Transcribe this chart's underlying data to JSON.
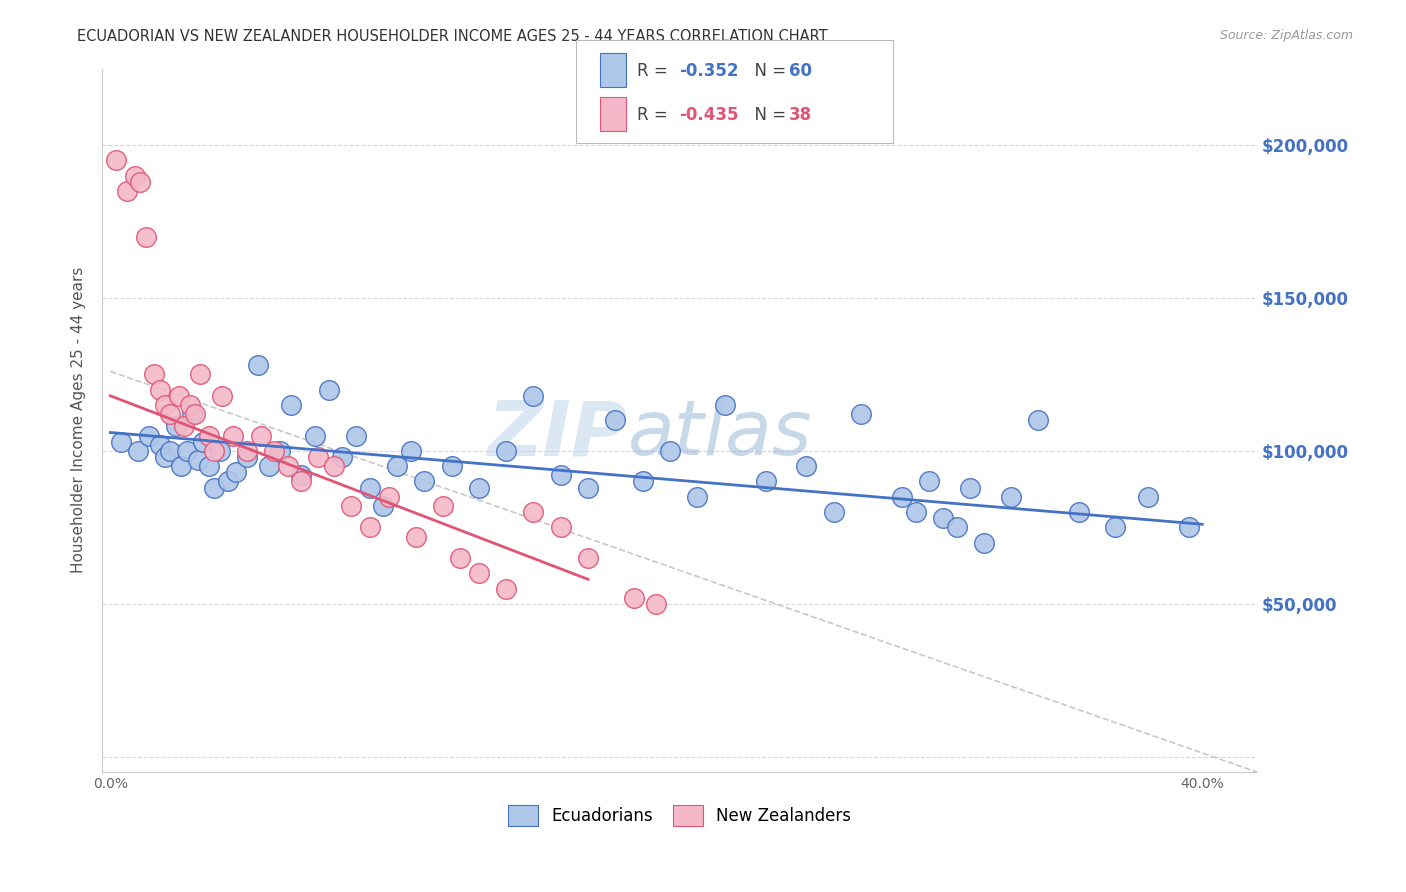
{
  "title": "ECUADORIAN VS NEW ZEALANDER HOUSEHOLDER INCOME AGES 25 - 44 YEARS CORRELATION CHART",
  "source": "Source: ZipAtlas.com",
  "ylabel": "Householder Income Ages 25 - 44 years",
  "xlabel_ticks": [
    "0.0%",
    "",
    "",
    "",
    "",
    "",
    "",
    "",
    "40.0%"
  ],
  "xlabel_vals": [
    0.0,
    0.05,
    0.1,
    0.15,
    0.2,
    0.25,
    0.3,
    0.35,
    0.4
  ],
  "ytick_vals": [
    0,
    50000,
    100000,
    150000,
    200000
  ],
  "ytick_labels": [
    "",
    "$50,000",
    "$100,000",
    "$150,000",
    "$200,000"
  ],
  "ylim": [
    -5000,
    225000
  ],
  "xlim": [
    -0.003,
    0.42
  ],
  "background_color": "#ffffff",
  "grid_color": "#d8d8d8",
  "blue_color": "#aec6e8",
  "pink_color": "#f4b8c8",
  "blue_line_color": "#4472c4",
  "pink_line_color": "#e05575",
  "gray_line_color": "#c8c8c8",
  "ecuadorians_label": "Ecuadorians",
  "nz_label": "New Zealanders",
  "blue_scatter_x": [
    0.004,
    0.01,
    0.014,
    0.018,
    0.02,
    0.022,
    0.024,
    0.026,
    0.028,
    0.03,
    0.032,
    0.034,
    0.036,
    0.038,
    0.04,
    0.043,
    0.046,
    0.05,
    0.054,
    0.058,
    0.062,
    0.066,
    0.07,
    0.075,
    0.08,
    0.085,
    0.09,
    0.095,
    0.1,
    0.105,
    0.11,
    0.115,
    0.125,
    0.135,
    0.145,
    0.155,
    0.165,
    0.175,
    0.185,
    0.195,
    0.205,
    0.215,
    0.225,
    0.24,
    0.255,
    0.265,
    0.275,
    0.29,
    0.305,
    0.315,
    0.295,
    0.3,
    0.31,
    0.32,
    0.33,
    0.34,
    0.355,
    0.368,
    0.38,
    0.395
  ],
  "blue_scatter_y": [
    103000,
    100000,
    105000,
    102000,
    98000,
    100000,
    108000,
    95000,
    100000,
    112000,
    97000,
    103000,
    95000,
    88000,
    100000,
    90000,
    93000,
    98000,
    128000,
    95000,
    100000,
    115000,
    92000,
    105000,
    120000,
    98000,
    105000,
    88000,
    82000,
    95000,
    100000,
    90000,
    95000,
    88000,
    100000,
    118000,
    92000,
    88000,
    110000,
    90000,
    100000,
    85000,
    115000,
    90000,
    95000,
    80000,
    112000,
    85000,
    78000,
    88000,
    80000,
    90000,
    75000,
    70000,
    85000,
    110000,
    80000,
    75000,
    85000,
    75000
  ],
  "pink_scatter_x": [
    0.002,
    0.006,
    0.009,
    0.011,
    0.013,
    0.016,
    0.018,
    0.02,
    0.022,
    0.025,
    0.027,
    0.029,
    0.031,
    0.033,
    0.036,
    0.038,
    0.041,
    0.045,
    0.05,
    0.055,
    0.06,
    0.065,
    0.07,
    0.076,
    0.082,
    0.088,
    0.095,
    0.102,
    0.112,
    0.122,
    0.128,
    0.135,
    0.145,
    0.155,
    0.165,
    0.175,
    0.192,
    0.2
  ],
  "pink_scatter_y": [
    195000,
    185000,
    190000,
    188000,
    170000,
    125000,
    120000,
    115000,
    112000,
    118000,
    108000,
    115000,
    112000,
    125000,
    105000,
    100000,
    118000,
    105000,
    100000,
    105000,
    100000,
    95000,
    90000,
    98000,
    95000,
    82000,
    75000,
    85000,
    72000,
    82000,
    65000,
    60000,
    55000,
    80000,
    75000,
    65000,
    52000,
    50000
  ],
  "blue_line_x": [
    0.0,
    0.4
  ],
  "blue_line_y": [
    106000,
    76000
  ],
  "pink_line_x": [
    0.0,
    0.175
  ],
  "pink_line_y": [
    118000,
    58000
  ],
  "gray_line_x": [
    0.0,
    0.42
  ],
  "gray_line_y": [
    126000,
    -5000
  ]
}
